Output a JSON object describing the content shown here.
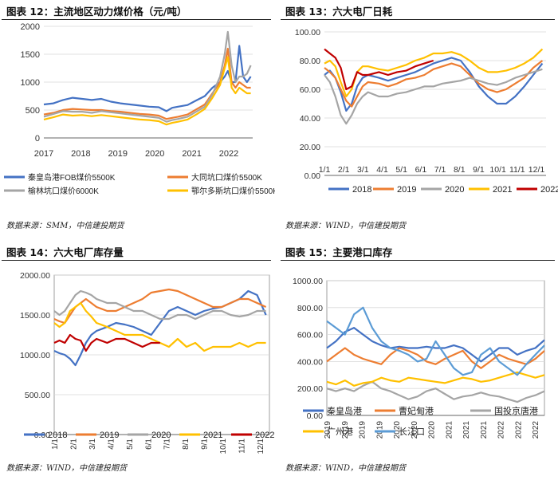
{
  "charts": [
    {
      "title": "图表 12：主流地区动力煤价格（元/吨）",
      "source": "数据来源：SMM，中信建投期货",
      "chart_data": {
        "type": "line",
        "yticks": [
          "0",
          "500",
          "1000",
          "1500",
          "2000"
        ],
        "ylim": [
          0,
          2000
        ],
        "xlabels": [
          "2017",
          "2018",
          "2019",
          "2020",
          "2021",
          "2022"
        ],
        "xlim": [
          2017,
          2022.45
        ],
        "x": [
          2017.0,
          2017.25,
          2017.5,
          2017.75,
          2018.0,
          2018.25,
          2018.5,
          2018.75,
          2019.0,
          2019.25,
          2019.5,
          2019.75,
          2020.0,
          2020.2,
          2020.35,
          2020.5,
          2020.75,
          2021.0,
          2021.2,
          2021.4,
          2021.6,
          2021.72,
          2021.8,
          2021.9,
          2022.0,
          2022.1,
          2022.2,
          2022.3,
          2022.4
        ],
        "series": [
          {
            "name": "秦皇岛港FOB煤价5500K",
            "color": "#4472C4",
            "values": [
              600,
              620,
              680,
              720,
              700,
              680,
              700,
              650,
              620,
              600,
              580,
              560,
              550,
              480,
              540,
              560,
              590,
              680,
              750,
              900,
              1000,
              1100,
              1200,
              1000,
              1000,
              1650,
              1100,
              1000,
              1100
            ]
          },
          {
            "name": "大同坑口煤价5500K",
            "color": "#ED7D31",
            "values": [
              420,
              450,
              500,
              520,
              510,
              500,
              500,
              480,
              470,
              450,
              430,
              420,
              400,
              340,
              360,
              380,
              420,
              520,
              600,
              800,
              1000,
              1300,
              1600,
              1000,
              900,
              1000,
              950,
              900,
              900
            ]
          },
          {
            "name": "榆林坑口煤价6000K",
            "color": "#A5A5A5",
            "values": [
              380,
              430,
              480,
              470,
              470,
              450,
              480,
              460,
              440,
              420,
              400,
              380,
              360,
              290,
              320,
              340,
              380,
              480,
              560,
              780,
              1100,
              1500,
              1900,
              1300,
              1000,
              1100,
              1100,
              1150,
              1300
            ]
          },
          {
            "name": "鄂尔多斯坑口煤价5500K",
            "color": "#FFC000",
            "values": [
              330,
              370,
              420,
              400,
              410,
              390,
              410,
              390,
              370,
              350,
              330,
              320,
              300,
              240,
              270,
              290,
              330,
              430,
              520,
              720,
              950,
              1250,
              1450,
              900,
              800,
              900,
              850,
              800,
              800
            ]
          }
        ]
      }
    },
    {
      "title": "图表 13：六大电厂日耗",
      "source": "数据来源：WIND，中信建投期货",
      "chart_data": {
        "type": "line",
        "yticks": [
          "0.00",
          "20.00",
          "40.00",
          "60.00",
          "80.00",
          "100.00"
        ],
        "ylim": [
          0,
          100
        ],
        "xlabels": [
          "1/1",
          "2/1",
          "3/1",
          "4/1",
          "5/1",
          "6/1",
          "7/1",
          "8/1",
          "9/1",
          "10/1",
          "11/1",
          "12/1"
        ],
        "xlim": [
          1,
          13.2
        ],
        "x": [
          1.0,
          1.3,
          1.6,
          1.9,
          2.2,
          2.5,
          2.8,
          3.1,
          3.4,
          4.0,
          4.5,
          5.0,
          5.5,
          6.0,
          6.5,
          7.0,
          7.5,
          8.0,
          8.5,
          9.0,
          9.5,
          10.0,
          10.5,
          11.0,
          11.5,
          12.0,
          12.5,
          13.0
        ],
        "series": [
          {
            "name": "2018",
            "color": "#4472C4",
            "values": [
              70,
              73,
              68,
              58,
              45,
              50,
              62,
              68,
              70,
              68,
              66,
              68,
              70,
              72,
              75,
              78,
              80,
              82,
              80,
              72,
              62,
              55,
              50,
              50,
              55,
              62,
              70,
              78
            ]
          },
          {
            "name": "2019",
            "color": "#ED7D31",
            "values": [
              75,
              72,
              68,
              60,
              52,
              48,
              55,
              62,
              65,
              64,
              62,
              64,
              67,
              68,
              70,
              74,
              76,
              78,
              76,
              70,
              64,
              60,
              58,
              60,
              64,
              68,
              75,
              80
            ]
          },
          {
            "name": "2020",
            "color": "#A5A5A5",
            "values": [
              70,
              65,
              55,
              42,
              36,
              42,
              50,
              55,
              58,
              55,
              55,
              57,
              58,
              60,
              62,
              62,
              64,
              65,
              66,
              68,
              66,
              64,
              63,
              65,
              68,
              70,
              72,
              74
            ]
          },
          {
            "name": "2021",
            "color": "#FFC000",
            "values": [
              78,
              80,
              76,
              65,
              55,
              60,
              72,
              76,
              76,
              74,
              73,
              75,
              77,
              80,
              82,
              85,
              85,
              86,
              84,
              80,
              75,
              72,
              72,
              73,
              75,
              78,
              82,
              88
            ]
          },
          {
            "name": "2022",
            "color": "#C00000",
            "values": [
              88,
              85,
              82,
              75,
              60,
              62,
              72,
              70,
              70,
              72,
              70,
              72,
              73,
              76,
              78,
              80,
              null,
              null,
              null,
              null,
              null,
              null,
              null,
              null,
              null,
              null,
              null,
              null
            ]
          }
        ]
      }
    },
    {
      "title": "图表 14：六大电厂库存量",
      "source": "数据来源：WIND，中信建投期货",
      "chart_data": {
        "type": "line",
        "yticks": [
          "0.00",
          "500.00",
          "1000.00",
          "1500.00",
          "2000.00"
        ],
        "ylim": [
          0,
          2000
        ],
        "xlabels": [
          "1/1",
          "2/1",
          "3/1",
          "4/1",
          "5/1",
          "6/1",
          "7/1",
          "8/1",
          "9/1",
          "10/1",
          "11/1",
          "12/1"
        ],
        "xlim": [
          1,
          13.2
        ],
        "x": [
          1.0,
          1.3,
          1.6,
          1.9,
          2.2,
          2.5,
          2.8,
          3.1,
          3.4,
          4.0,
          4.5,
          5.0,
          5.5,
          6.0,
          6.5,
          7.0,
          7.5,
          8.0,
          8.5,
          9.0,
          9.5,
          10.0,
          10.5,
          11.0,
          11.5,
          12.0,
          12.5,
          13.0
        ],
        "series": [
          {
            "name": "2018",
            "color": "#4472C4",
            "values": [
              1050,
              1020,
              1000,
              950,
              870,
              1000,
              1150,
              1250,
              1300,
              1350,
              1400,
              1380,
              1350,
              1300,
              1250,
              1400,
              1550,
              1600,
              1550,
              1500,
              1550,
              1580,
              1600,
              1650,
              1700,
              1800,
              1750,
              1500
            ]
          },
          {
            "name": "2019",
            "color": "#ED7D31",
            "values": [
              1450,
              1420,
              1400,
              1500,
              1600,
              1650,
              1700,
              1650,
              1600,
              1550,
              1550,
              1600,
              1650,
              1700,
              1780,
              1800,
              1820,
              1800,
              1750,
              1700,
              1650,
              1600,
              1600,
              1650,
              1700,
              1700,
              1650,
              1600
            ]
          },
          {
            "name": "2020",
            "color": "#A5A5A5",
            "values": [
              1550,
              1500,
              1550,
              1650,
              1750,
              1800,
              1780,
              1750,
              1700,
              1650,
              1650,
              1600,
              1550,
              1550,
              1500,
              1450,
              1450,
              1500,
              1500,
              1450,
              1500,
              1550,
              1550,
              1500,
              1480,
              1500,
              1550,
              1550
            ]
          },
          {
            "name": "2021",
            "color": "#FFC000",
            "values": [
              1400,
              1350,
              1400,
              1550,
              1600,
              1650,
              1550,
              1480,
              1400,
              1350,
              1300,
              1250,
              1250,
              1250,
              1200,
              1150,
              1100,
              1200,
              1100,
              1150,
              1050,
              1100,
              1100,
              1100,
              1150,
              1100,
              1150,
              1150
            ]
          },
          {
            "name": "2022",
            "color": "#C00000",
            "values": [
              1150,
              1180,
              1150,
              1250,
              1200,
              1180,
              1050,
              1150,
              1200,
              1150,
              1200,
              1200,
              1150,
              1100,
              1150,
              1150,
              null,
              null,
              null,
              null,
              null,
              null,
              null,
              null,
              null,
              null,
              null,
              null
            ]
          }
        ]
      }
    },
    {
      "title": "图表 15：主要港口库存",
      "source": "数据来源：WIND，中信建投期货",
      "chart_data": {
        "type": "line",
        "yticks": [
          "0.00",
          "200.00",
          "400.00",
          "600.00",
          "800.00",
          "1000.00"
        ],
        "ylim": [
          0,
          1000
        ],
        "xlabels": [
          "2019",
          "2019",
          "2019",
          "2019",
          "2020",
          "2020",
          "2020",
          "2021",
          "2021",
          "2021",
          "2022",
          "2022",
          "2022"
        ],
        "xlim": [
          0,
          12
        ],
        "x": [
          0,
          0.5,
          1,
          1.5,
          2,
          2.5,
          3,
          3.5,
          4,
          4.5,
          5,
          5.5,
          6,
          6.5,
          7,
          7.5,
          8,
          8.5,
          9,
          9.5,
          10,
          10.5,
          11,
          11.5,
          12
        ],
        "series": [
          {
            "name": "秦皇岛港",
            "color": "#4472C4",
            "values": [
              500,
              550,
              620,
              650,
              600,
              550,
              520,
              500,
              510,
              500,
              500,
              510,
              500,
              500,
              520,
              500,
              450,
              400,
              450,
              500,
              500,
              450,
              480,
              500,
              560
            ]
          },
          {
            "name": "曹妃甸港",
            "color": "#ED7D31",
            "values": [
              400,
              450,
              500,
              450,
              420,
              400,
              380,
              450,
              500,
              480,
              450,
              400,
              380,
              420,
              450,
              480,
              400,
              350,
              400,
              450,
              420,
              400,
              380,
              420,
              480
            ]
          },
          {
            "name": "国投京唐港",
            "color": "#A5A5A5",
            "values": [
              200,
              180,
              200,
              180,
              220,
              250,
              200,
              180,
              150,
              120,
              140,
              180,
              200,
              160,
              120,
              140,
              150,
              170,
              150,
              140,
              120,
              100,
              130,
              150,
              180
            ]
          },
          {
            "name": "广州港",
            "color": "#FFC000",
            "values": [
              250,
              230,
              260,
              220,
              240,
              250,
              280,
              260,
              250,
              280,
              270,
              260,
              250,
              240,
              260,
              280,
              270,
              250,
              260,
              280,
              300,
              320,
              300,
              280,
              300
            ]
          },
          {
            "name": "长江口",
            "color": "#5B9BD5",
            "values": [
              700,
              650,
              600,
              750,
              800,
              650,
              550,
              500,
              480,
              450,
              400,
              420,
              550,
              450,
              350,
              300,
              320,
              450,
              500,
              400,
              350,
              300,
              380,
              450,
              520
            ]
          }
        ]
      }
    }
  ]
}
